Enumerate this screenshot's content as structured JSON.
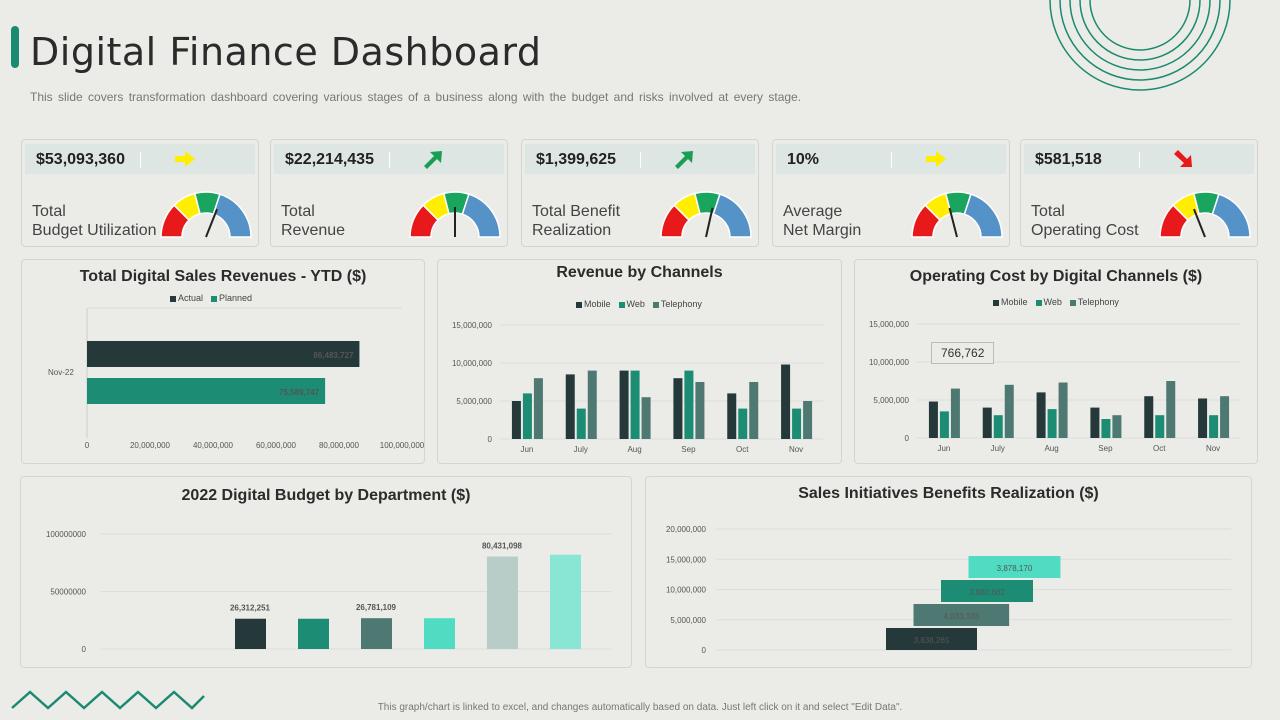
{
  "header": {
    "title": "Digital Finance Dashboard",
    "subtitle": "This slide covers transformation dashboard covering various stages of a business along with the budget and risks involved at every stage."
  },
  "footer": {
    "note": "This graph/chart is linked to excel, and changes automatically based on data. Just left click on it and select \"Edit Data\"."
  },
  "colors": {
    "dark": "#25393a",
    "teal": "#1c8c74",
    "slate": "#4e7872",
    "mint": "#4fdcc2",
    "pale": "#b8ccc8",
    "light_mint": "#8ae6d4",
    "accent": "#1a8a70"
  },
  "kpis": [
    {
      "value": "$53,093,360",
      "label_line1": "Total",
      "label_line2": "Budget Utilization",
      "arrow": "arrow-right-yellow",
      "needle": 0.62
    },
    {
      "value": "$22,214,435",
      "label_line1": "Total",
      "label_line2": "Revenue",
      "arrow": "arrow-up-right-green",
      "needle": 0.5
    },
    {
      "value": "$1,399,625",
      "label_line1": "Total Benefit",
      "label_line2": "Realization",
      "arrow": "arrow-up-right-green",
      "needle": 0.57
    },
    {
      "value": "10%",
      "label_line1": "Average",
      "label_line2": "Net Margin",
      "arrow": "arrow-right-yellow",
      "needle": 0.42
    },
    {
      "value": "$581,518",
      "label_line1": "Total",
      "label_line2": "Operating Cost",
      "arrow": "arrow-down-right-red",
      "needle": 0.38
    }
  ],
  "chart_data": [
    {
      "id": "ytd",
      "type": "bar",
      "orientation": "horizontal",
      "title": "Total Digital Sales Revenues - YTD ($)",
      "categories": [
        "Nov-22"
      ],
      "series": [
        {
          "name": "Actual",
          "values": [
            86483727
          ],
          "labels": [
            "86,483,727"
          ]
        },
        {
          "name": "Planned",
          "values": [
            75589747
          ],
          "labels": [
            "75,589,747"
          ]
        }
      ],
      "xlim": [
        0,
        100000000
      ],
      "xticks": [
        "0",
        "20,000,000",
        "40,000,000",
        "60,000,000",
        "80,000,000",
        "100,000,000"
      ]
    },
    {
      "id": "revenue",
      "type": "bar",
      "title": "Revenue by Channels",
      "categories": [
        "Jun",
        "July",
        "Aug",
        "Sep",
        "Oct",
        "Nov"
      ],
      "series": [
        {
          "name": "Mobile",
          "values": [
            5000000,
            8500000,
            9000000,
            8000000,
            6000000,
            9800000
          ]
        },
        {
          "name": "Web",
          "values": [
            6000000,
            4000000,
            9000000,
            9000000,
            4000000,
            4000000
          ]
        },
        {
          "name": "Telephony",
          "values": [
            8000000,
            9000000,
            5500000,
            7500000,
            7500000,
            5000000
          ]
        }
      ],
      "ylim": [
        0,
        15000000
      ],
      "yticks": [
        "0",
        "5,000,000",
        "10,000,000",
        "15,000,000"
      ]
    },
    {
      "id": "opcost",
      "type": "bar",
      "title": "Operating Cost by Digital Channels ($)",
      "categories": [
        "Jun",
        "July",
        "Aug",
        "Sep",
        "Oct",
        "Nov"
      ],
      "series": [
        {
          "name": "Mobile",
          "values": [
            4800000,
            4000000,
            6000000,
            4000000,
            5500000,
            5200000
          ]
        },
        {
          "name": "Web",
          "values": [
            3500000,
            3000000,
            3800000,
            2500000,
            3000000,
            3000000
          ]
        },
        {
          "name": "Telephony",
          "values": [
            6500000,
            7000000,
            7300000,
            3000000,
            7500000,
            5500000
          ]
        }
      ],
      "ylim": [
        0,
        15000000
      ],
      "yticks": [
        "0",
        "5,000,000",
        "10,000,000",
        "15,000,000"
      ],
      "callout": "766,762"
    },
    {
      "id": "budget",
      "type": "bar",
      "title": "2022 Digital Budget by Department ($)",
      "values": [
        26312251,
        26312251,
        26781109,
        26781109,
        80431098,
        82000000
      ],
      "labels": [
        "26,312,251",
        "",
        "26,781,109",
        "",
        "80,431,098",
        ""
      ],
      "ylim": [
        0,
        100000000
      ],
      "yticks": [
        "0",
        "50000000",
        "100000000"
      ]
    },
    {
      "id": "benefits",
      "type": "bar",
      "orientation": "horizontal",
      "title": "Sales Initiatives Benefits Realization ($)",
      "values": [
        3838265,
        4033333,
        3880662,
        3878170
      ],
      "labels": [
        "3,838,265",
        "4,033,333",
        "3,880,662",
        "3,878,170"
      ],
      "ylim": [
        0,
        20000000
      ],
      "yticks": [
        "0",
        "5,000,000",
        "10,000,000",
        "15,000,000",
        "20,000,000"
      ]
    }
  ],
  "legends": {
    "ytd": [
      "Actual",
      "Planned"
    ],
    "channels": [
      "Mobile",
      "Web",
      "Telephony"
    ]
  }
}
